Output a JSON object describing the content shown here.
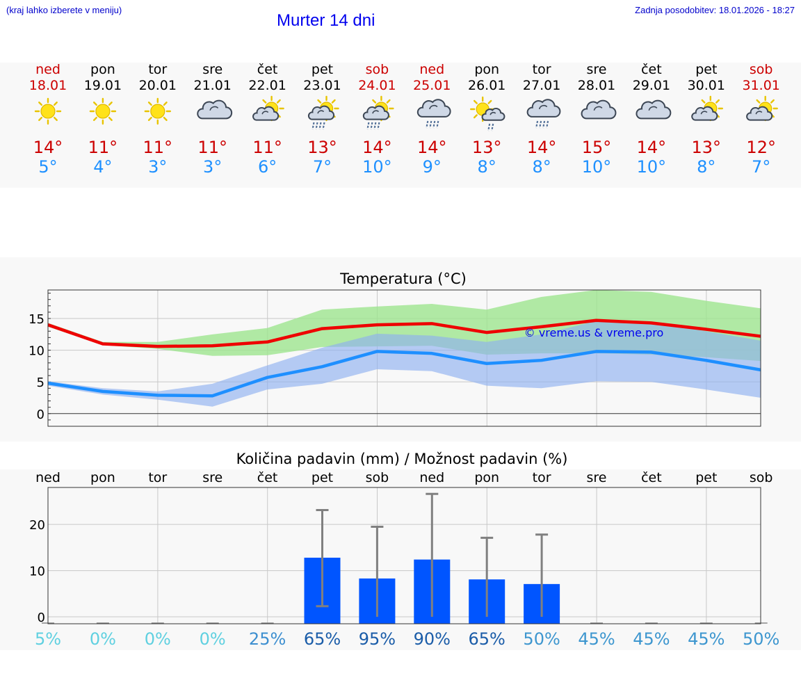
{
  "header": {
    "note": "(kraj lahko izberete v meniju)",
    "title": "Murter 14 dni",
    "updated": "Zadnja posodobitev: 18.01.2026 - 18:27"
  },
  "colors": {
    "weekend": "#cc0000",
    "weekday": "#000000",
    "max_temp": "#cc0000",
    "min_temp": "#1e90ff",
    "max_line": "#ee0000",
    "min_line": "#1e8fff",
    "max_band": "#9de58f",
    "min_band": "#8fb0f0",
    "bar": "#0055ff",
    "errorbar": "#808080",
    "copyright": "#0000ee"
  },
  "days": [
    {
      "day": "ned",
      "date": "18.01",
      "weekend": true,
      "icon": "sun-icon",
      "max": "14°",
      "min": "5°"
    },
    {
      "day": "pon",
      "date": "19.01",
      "weekend": false,
      "icon": "sun-icon",
      "max": "11°",
      "min": "4°"
    },
    {
      "day": "tor",
      "date": "20.01",
      "weekend": false,
      "icon": "sun-icon",
      "max": "11°",
      "min": "3°"
    },
    {
      "day": "sre",
      "date": "21.01",
      "weekend": false,
      "icon": "cloud-icon",
      "max": "11°",
      "min": "3°"
    },
    {
      "day": "čet",
      "date": "22.01",
      "weekend": false,
      "icon": "partly-cloudy-icon",
      "max": "11°",
      "min": "6°"
    },
    {
      "day": "pet",
      "date": "23.01",
      "weekend": false,
      "icon": "sun-rain-icon",
      "max": "13°",
      "min": "7°"
    },
    {
      "day": "sob",
      "date": "24.01",
      "weekend": true,
      "icon": "sun-rain-icon",
      "max": "14°",
      "min": "10°"
    },
    {
      "day": "ned",
      "date": "25.01",
      "weekend": true,
      "icon": "cloud-rain-icon",
      "max": "14°",
      "min": "9°"
    },
    {
      "day": "pon",
      "date": "26.01",
      "weekend": false,
      "icon": "sun-shower-icon",
      "max": "13°",
      "min": "8°"
    },
    {
      "day": "tor",
      "date": "27.01",
      "weekend": false,
      "icon": "cloud-rain-icon",
      "max": "14°",
      "min": "8°"
    },
    {
      "day": "sre",
      "date": "28.01",
      "weekend": false,
      "icon": "cloud-icon",
      "max": "15°",
      "min": "10°"
    },
    {
      "day": "čet",
      "date": "29.01",
      "weekend": false,
      "icon": "cloud-icon",
      "max": "14°",
      "min": "10°"
    },
    {
      "day": "pet",
      "date": "30.01",
      "weekend": false,
      "icon": "partly-cloudy-icon",
      "max": "13°",
      "min": "8°"
    },
    {
      "day": "sob",
      "date": "31.01",
      "weekend": true,
      "icon": "partly-cloudy-icon",
      "max": "12°",
      "min": "7°"
    }
  ],
  "chart_data": [
    {
      "type": "line",
      "title": "Temperatura (°C)",
      "watermark": "© vreme.us & vreme.pro",
      "ylim": [
        -2,
        19.5
      ],
      "yticks": [
        0,
        5,
        10,
        15
      ],
      "grid": true,
      "series": [
        {
          "name": "max",
          "values": [
            14.0,
            11.0,
            10.6,
            10.7,
            11.3,
            13.4,
            14.0,
            14.2,
            12.8,
            13.7,
            14.7,
            14.3,
            13.3,
            12.2
          ]
        },
        {
          "name": "min",
          "values": [
            4.8,
            3.5,
            2.9,
            2.8,
            5.7,
            7.4,
            9.8,
            9.5,
            7.9,
            8.4,
            9.8,
            9.7,
            8.4,
            6.9
          ]
        }
      ],
      "bands": [
        {
          "name": "max range",
          "lower": [
            13.7,
            10.8,
            10.2,
            9.1,
            9.2,
            10.5,
            10.6,
            10.7,
            9.3,
            9.5,
            9.5,
            9.3,
            8.9,
            8.3
          ],
          "upper": [
            14.3,
            11.3,
            11.3,
            12.5,
            13.5,
            16.4,
            16.9,
            17.3,
            16.4,
            18.4,
            19.5,
            19.2,
            17.8,
            16.6
          ]
        },
        {
          "name": "min range",
          "lower": [
            4.4,
            3.0,
            2.2,
            1.1,
            3.8,
            4.7,
            7.0,
            6.7,
            4.4,
            4.0,
            5.1,
            5.0,
            3.8,
            2.5
          ],
          "upper": [
            5.1,
            4.0,
            3.5,
            4.7,
            7.6,
            10.4,
            12.6,
            12.3,
            11.3,
            12.5,
            14.6,
            14.4,
            13.0,
            11.5
          ]
        }
      ]
    },
    {
      "type": "bar",
      "title": "Količina padavin (mm) / Možnost padavin (%)",
      "categories": [
        "ned",
        "pon",
        "tor",
        "sre",
        "čet",
        "pet",
        "sob",
        "ned",
        "pon",
        "tor",
        "sre",
        "čet",
        "pet",
        "sob"
      ],
      "values": [
        0,
        0,
        0,
        0,
        0,
        12.8,
        8.3,
        12.4,
        8.1,
        7.1,
        0,
        0,
        0,
        0
      ],
      "err_low": [
        0,
        0,
        0,
        0,
        0,
        2.3,
        0,
        0,
        0,
        0,
        0,
        0,
        0,
        0
      ],
      "err_high": [
        0,
        0,
        0,
        0,
        0,
        23.1,
        19.5,
        26.6,
        17.1,
        17.8,
        0,
        0,
        0,
        0
      ],
      "ylim": [
        -1.5,
        28
      ],
      "yticks": [
        0,
        10,
        20
      ],
      "probability_labels": [
        "5%",
        "0%",
        "0%",
        "0%",
        "25%",
        "65%",
        "95%",
        "90%",
        "65%",
        "50%",
        "45%",
        "45%",
        "45%",
        "50%"
      ],
      "probability_values": [
        5,
        0,
        0,
        0,
        25,
        65,
        95,
        90,
        65,
        50,
        45,
        45,
        45,
        50
      ]
    }
  ]
}
